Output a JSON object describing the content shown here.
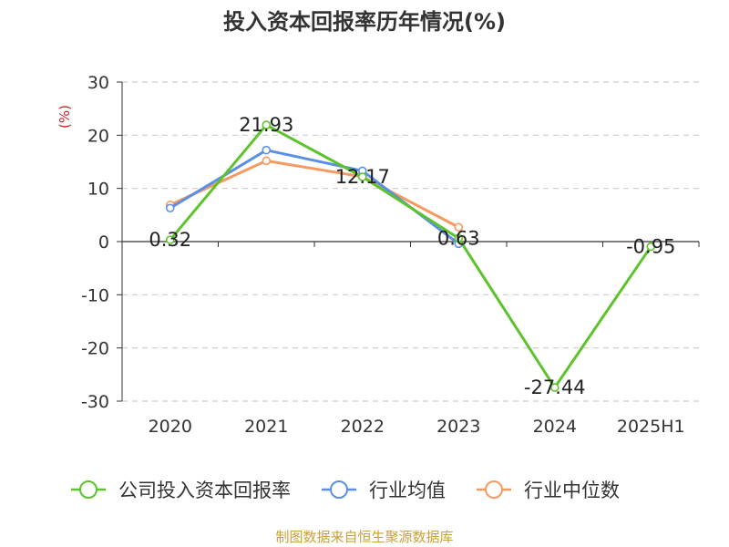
{
  "title": "投入资本回报率历年情况(%)",
  "source": "制图数据来自恒生聚源数据库",
  "chart_data": {
    "type": "line",
    "title": "投入资本回报率历年情况(%)",
    "ylabel": "(%)",
    "xlabel": "",
    "categories": [
      "2020",
      "2021",
      "2022",
      "2023",
      "2024",
      "2025H1"
    ],
    "ylim": [
      -30,
      30
    ],
    "yticks": [
      30,
      20,
      10,
      0,
      -10,
      -20,
      -30
    ],
    "grid": true,
    "legend_position": "bottom",
    "series": [
      {
        "name": "公司投入资本回报率",
        "color": "#5dc32c",
        "values": [
          0.32,
          21.93,
          12.17,
          0.63,
          -27.44,
          -0.95
        ],
        "labels": [
          "0.32",
          "21.93",
          "12.17",
          "0.63",
          "-27.44",
          "-0.95"
        ]
      },
      {
        "name": "行业均值",
        "color": "#5b8fe6",
        "values": [
          6.3,
          17.2,
          13.3,
          -0.4,
          null,
          null
        ]
      },
      {
        "name": "行业中位数",
        "color": "#f59a61",
        "values": [
          6.9,
          15.2,
          12.2,
          2.7,
          null,
          null
        ]
      }
    ]
  }
}
